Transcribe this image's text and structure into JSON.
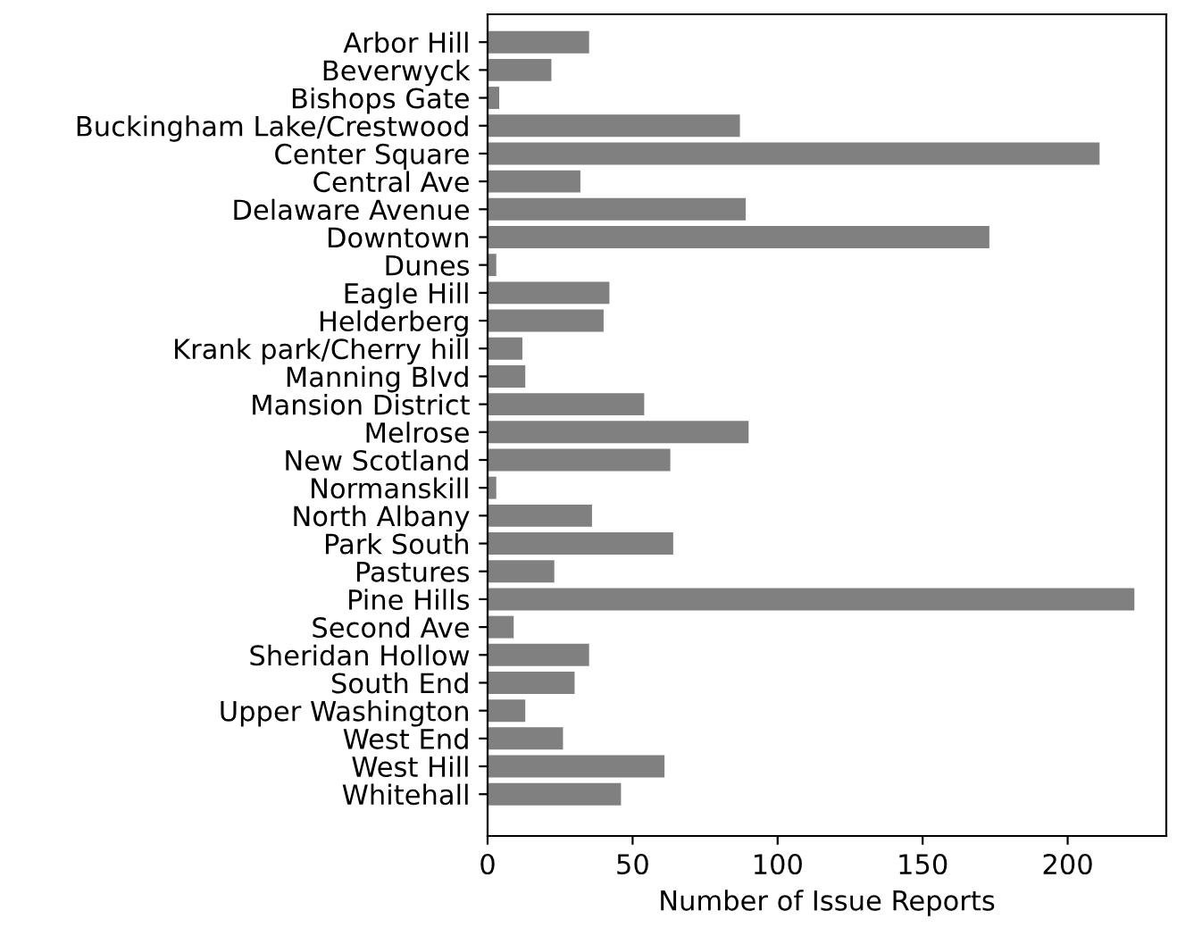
{
  "chart_data": {
    "type": "bar",
    "orientation": "horizontal",
    "xlabel": "Number of Issue Reports",
    "categories": [
      "Arbor Hill",
      "Beverwyck",
      "Bishops Gate",
      "Buckingham Lake/Crestwood",
      "Center Square",
      "Central Ave",
      "Delaware Avenue",
      "Downtown",
      "Dunes",
      "Eagle Hill",
      "Helderberg",
      "Krank park/Cherry hill",
      "Manning Blvd",
      "Mansion District",
      "Melrose",
      "New Scotland",
      "Normanskill",
      "North Albany",
      "Park South",
      "Pastures",
      "Pine Hills",
      "Second Ave",
      "Sheridan Hollow",
      "South End",
      "Upper Washington",
      "West End",
      "West Hill",
      "Whitehall"
    ],
    "values": [
      35,
      22,
      4,
      87,
      211,
      32,
      89,
      173,
      3,
      42,
      40,
      12,
      13,
      54,
      90,
      63,
      3,
      36,
      64,
      23,
      223,
      9,
      35,
      30,
      13,
      26,
      61,
      46
    ],
    "color": "#808080",
    "xlim": [
      0,
      234
    ],
    "xticks": [
      0,
      50,
      100,
      150,
      200
    ],
    "grid": false,
    "legend": false
  }
}
